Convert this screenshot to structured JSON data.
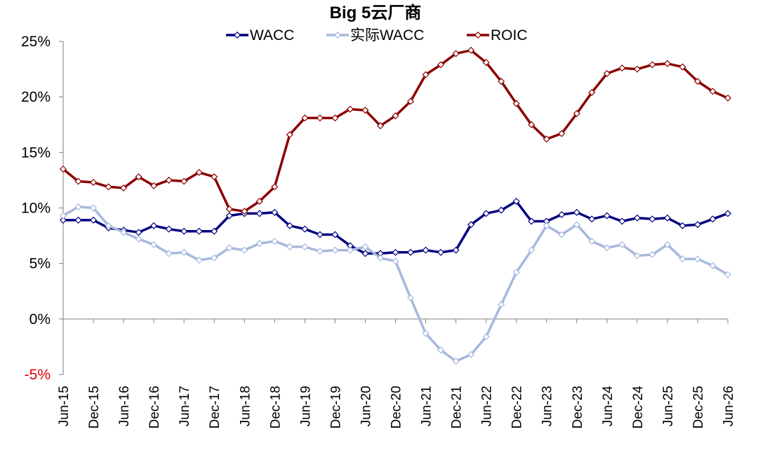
{
  "chart_data": {
    "type": "line",
    "title": "Big 5云厂商",
    "xlabel": "",
    "ylabel": "",
    "ylim": [
      -5,
      25
    ],
    "yticks": [
      {
        "value": 25,
        "label": "25%",
        "color": "#000000"
      },
      {
        "value": 20,
        "label": "20%",
        "color": "#000000"
      },
      {
        "value": 15,
        "label": "15%",
        "color": "#000000"
      },
      {
        "value": 10,
        "label": "10%",
        "color": "#000000"
      },
      {
        "value": 5,
        "label": "5%",
        "color": "#000000"
      },
      {
        "value": 0,
        "label": "0%",
        "color": "#000000"
      },
      {
        "value": -5,
        "label": "-5%",
        "color": "#e00000"
      }
    ],
    "xtick_labels": [
      "Jun-15",
      "Dec-15",
      "Jun-16",
      "Dec-16",
      "Jun-17",
      "Dec-17",
      "Jun-18",
      "Dec-18",
      "Jun-19",
      "Dec-19",
      "Jun-20",
      "Dec-20",
      "Jun-21",
      "Dec-21",
      "Jun-22",
      "Dec-22",
      "Jun-23",
      "Dec-23",
      "Jun-24",
      "Dec-24",
      "Jun-25",
      "Dec-25",
      "Jun-26"
    ],
    "x": [
      "Jun-15",
      "Sep-15",
      "Dec-15",
      "Mar-16",
      "Jun-16",
      "Sep-16",
      "Dec-16",
      "Mar-17",
      "Jun-17",
      "Sep-17",
      "Dec-17",
      "Mar-18",
      "Jun-18",
      "Sep-18",
      "Dec-18",
      "Mar-19",
      "Jun-19",
      "Sep-19",
      "Dec-19",
      "Mar-20",
      "Jun-20",
      "Sep-20",
      "Dec-20",
      "Mar-21",
      "Jun-21",
      "Sep-21",
      "Dec-21",
      "Mar-22",
      "Jun-22",
      "Sep-22",
      "Dec-22",
      "Mar-23",
      "Jun-23",
      "Sep-23",
      "Dec-23",
      "Mar-24",
      "Jun-24",
      "Sep-24",
      "Dec-24",
      "Mar-25",
      "Jun-25",
      "Sep-25",
      "Dec-25",
      "Mar-26",
      "Jun-26"
    ],
    "grid": false,
    "legend_position": "top",
    "series": [
      {
        "name": "WACC",
        "color": "#000080",
        "values": [
          8.9,
          8.9,
          8.9,
          8.2,
          8.0,
          7.8,
          8.4,
          8.1,
          7.9,
          7.9,
          7.9,
          9.3,
          9.5,
          9.5,
          9.6,
          8.4,
          8.1,
          7.6,
          7.6,
          6.6,
          5.9,
          5.9,
          6.0,
          6.0,
          6.2,
          6.0,
          6.2,
          8.5,
          9.5,
          9.8,
          10.6,
          8.8,
          8.8,
          9.4,
          9.6,
          9.0,
          9.3,
          8.8,
          9.1,
          9.0,
          9.1,
          8.4,
          8.5,
          9.0,
          9.5
        ]
      },
      {
        "name": "实际WACC",
        "color": "#a6b8dd",
        "values": [
          9.3,
          10.1,
          10.0,
          8.4,
          7.8,
          7.2,
          6.7,
          5.9,
          6.0,
          5.3,
          5.5,
          6.4,
          6.2,
          6.8,
          7.0,
          6.5,
          6.5,
          6.1,
          6.2,
          6.2,
          6.5,
          5.5,
          5.2,
          1.9,
          -1.3,
          -2.8,
          -3.8,
          -3.2,
          -1.6,
          1.3,
          4.2,
          6.2,
          8.4,
          7.6,
          8.5,
          7.0,
          6.4,
          6.7,
          5.7,
          5.8,
          6.7,
          5.4,
          5.4,
          4.8,
          4.0
        ]
      },
      {
        "name": "ROIC",
        "color": "#8b0000",
        "values": [
          13.5,
          12.4,
          12.3,
          11.9,
          11.8,
          12.8,
          12.0,
          12.5,
          12.4,
          13.2,
          12.8,
          9.9,
          9.7,
          10.6,
          11.9,
          16.6,
          18.1,
          18.1,
          18.1,
          18.9,
          18.8,
          17.4,
          18.3,
          19.6,
          22.0,
          22.9,
          23.9,
          24.2,
          23.1,
          21.4,
          19.4,
          17.5,
          16.2,
          16.7,
          18.5,
          20.4,
          22.1,
          22.6,
          22.5,
          22.9,
          23.0,
          22.7,
          21.4,
          20.5,
          19.9
        ]
      }
    ]
  }
}
